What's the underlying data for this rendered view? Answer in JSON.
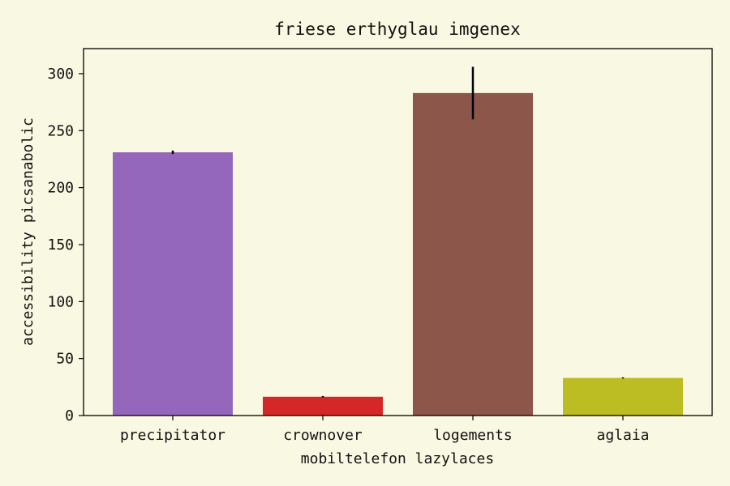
{
  "chart_data": {
    "type": "bar",
    "title": "friese erthyglau imgenex",
    "xlabel": "mobiltelefon lazylaces",
    "ylabel": "accessibility picsanabolic",
    "categories": [
      "precipitator",
      "crownover",
      "logements",
      "aglaia"
    ],
    "values": [
      231,
      16.5,
      283,
      33
    ],
    "errors": [
      1.5,
      0.6,
      23,
      0.5
    ],
    "colors": [
      "#9467bd",
      "#d62728",
      "#8c564b",
      "#bcbd22"
    ],
    "ylim": [
      0,
      322
    ],
    "yticks": [
      0,
      50,
      100,
      150,
      200,
      250,
      300
    ],
    "grid": false,
    "legend": false
  }
}
